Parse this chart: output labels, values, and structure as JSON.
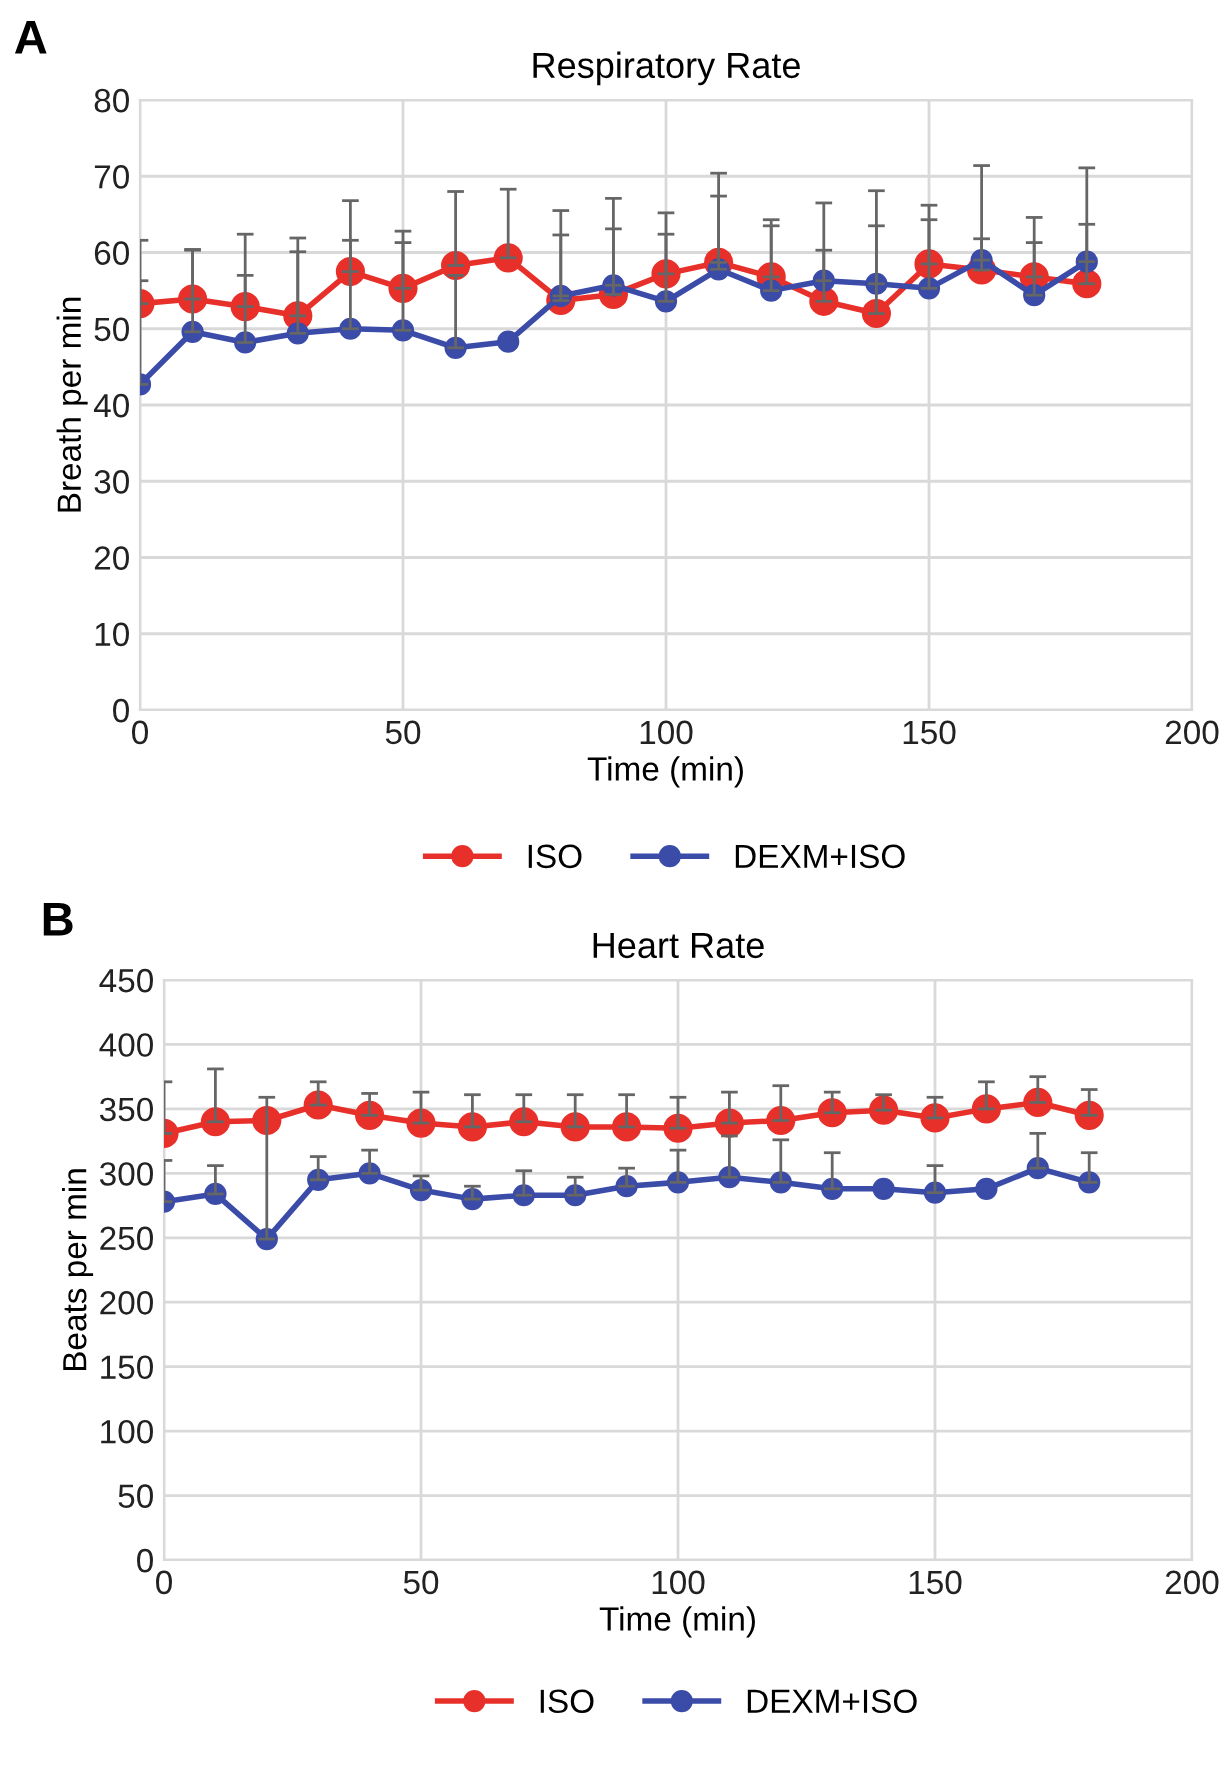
{
  "chart_data": [
    {
      "type": "line",
      "title": "Respiratory Rate",
      "xlabel": "Time (min)",
      "ylabel": "Breath per min",
      "annotations": [
        "A"
      ],
      "x": [
        0,
        10,
        20,
        30,
        40,
        50,
        60,
        70,
        80,
        90,
        100,
        110,
        120,
        130,
        140,
        150,
        160,
        170,
        180
      ],
      "series": [
        {
          "name": "ISO",
          "color": "#e8302a",
          "values": [
            53.3,
            53.9,
            52.9,
            51.7,
            57.5,
            55.3,
            58.3,
            59.3,
            53.7,
            54.5,
            57.2,
            58.7,
            56.8,
            53.6,
            52,
            58.5,
            57.7,
            56.8,
            55.9
          ],
          "errors": [
            [
              53.3,
              56.3
            ],
            [
              53.9,
              60.4
            ],
            [
              52.9,
              62.4
            ],
            [
              51.7,
              61.9
            ],
            [
              57.5,
              66.8
            ],
            [
              55.3,
              62.8
            ],
            [
              58.3,
              68
            ],
            [
              59.3,
              68.3
            ],
            [
              53.7,
              62.3
            ],
            [
              54.5,
              63.1
            ],
            [
              57.2,
              65.2
            ],
            [
              58.7,
              70.4
            ],
            [
              56.8,
              64.3
            ],
            [
              53.6,
              60.3
            ],
            [
              52,
              68.1
            ],
            [
              58.5,
              66.2
            ],
            [
              57.7,
              61.8
            ],
            [
              56.8,
              64.6
            ],
            [
              55.9,
              63.7
            ]
          ]
        },
        {
          "name": "DEXM+ISO",
          "color": "#3a4ba8",
          "values": [
            42.7,
            49.6,
            48.2,
            49.4,
            50,
            49.8,
            47.5,
            48.3,
            54.3,
            55.7,
            53.6,
            57.8,
            55,
            56.3,
            55.9,
            55.3,
            59,
            54.4,
            58.8
          ],
          "errors": [
            [
              42.7,
              61.6
            ],
            [
              49.6,
              60.3
            ],
            [
              48.2,
              57
            ],
            [
              49.4,
              60.1
            ],
            [
              50,
              61.6
            ],
            [
              49.8,
              61.3
            ],
            [
              47.5,
              57
            ],
            null,
            [
              54.3,
              65.5
            ],
            [
              55.7,
              67.1
            ],
            [
              53.6,
              62.4
            ],
            [
              57.8,
              67.4
            ],
            [
              55,
              63.5
            ],
            [
              56.3,
              66.5
            ],
            [
              55.9,
              63.5
            ],
            [
              55.3,
              64.3
            ],
            [
              59,
              71.4
            ],
            [
              54.4,
              61.3
            ],
            [
              58.8,
              71.1
            ]
          ]
        }
      ],
      "xlim": [
        0,
        200
      ],
      "xticks": [
        0,
        50,
        100,
        150,
        200
      ],
      "ylim": [
        0,
        80
      ],
      "yticks": [
        0,
        10,
        20,
        30,
        40,
        50,
        60,
        70,
        80
      ],
      "grid": true,
      "legend": "bottom",
      "marker": "circle",
      "line_style": "solid"
    },
    {
      "type": "line",
      "title": "Heart Rate",
      "xlabel": "Time (min)",
      "ylabel": "Beats per min",
      "annotations": [
        "B"
      ],
      "x": [
        0,
        10,
        20,
        30,
        40,
        50,
        60,
        70,
        80,
        90,
        100,
        110,
        120,
        130,
        140,
        150,
        160,
        170,
        180
      ],
      "series": [
        {
          "name": "ISO",
          "color": "#e8302a",
          "values": [
            331,
            340,
            341,
            353,
            345,
            339,
            336,
            340,
            336,
            336,
            335,
            339,
            341,
            347,
            349,
            343,
            350,
            355,
            345
          ],
          "errors": [
            [
              331,
              371
            ],
            [
              340,
              381
            ],
            null,
            [
              353,
              371
            ],
            [
              345,
              362
            ],
            [
              339,
              363
            ],
            [
              336,
              361
            ],
            [
              340,
              361
            ],
            [
              336,
              361
            ],
            [
              336,
              361
            ],
            [
              335,
              359
            ],
            [
              339,
              363
            ],
            [
              341,
              368
            ],
            [
              347,
              363
            ],
            [
              349,
              361
            ],
            [
              343,
              359
            ],
            [
              350,
              371
            ],
            [
              355,
              375
            ],
            [
              345,
              365
            ]
          ]
        },
        {
          "name": "DEXM+ISO",
          "color": "#3a4ba8",
          "values": [
            278,
            284,
            249,
            295,
            300,
            287,
            280,
            283,
            283,
            290,
            293,
            297,
            293,
            288,
            288,
            285,
            288,
            304,
            293
          ],
          "errors": [
            [
              278,
              310
            ],
            [
              284,
              306
            ],
            [
              249,
              359
            ],
            [
              295,
              313
            ],
            [
              300,
              318
            ],
            [
              287,
              298
            ],
            [
              280,
              290
            ],
            [
              283,
              302
            ],
            [
              283,
              297
            ],
            [
              290,
              304
            ],
            [
              293,
              318
            ],
            [
              297,
              329
            ],
            [
              293,
              326
            ],
            [
              288,
              316
            ],
            null,
            [
              285,
              306
            ],
            null,
            [
              304,
              331
            ],
            [
              293,
              316
            ]
          ]
        }
      ],
      "xlim": [
        0,
        200
      ],
      "xticks": [
        0,
        50,
        100,
        150,
        200
      ],
      "ylim": [
        0,
        450
      ],
      "yticks": [
        0,
        50,
        100,
        150,
        200,
        250,
        300,
        350,
        400,
        450
      ],
      "grid": true,
      "legend": "bottom",
      "marker": "circle",
      "line_style": "solid"
    }
  ]
}
